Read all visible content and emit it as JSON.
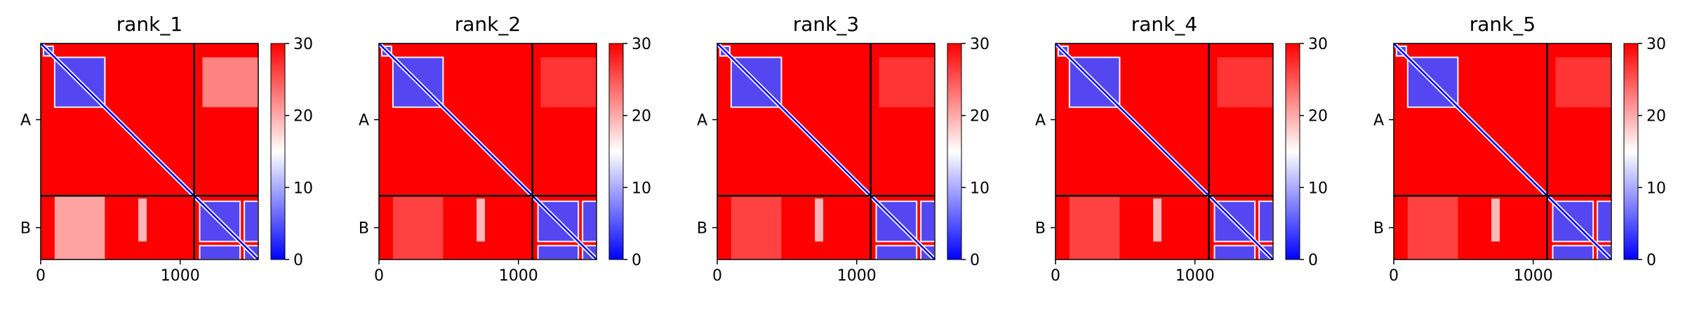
{
  "chart_data": [
    {
      "type": "heatmap",
      "title": "rank_1",
      "chains": [
        "A",
        "B"
      ],
      "x_ticks": [
        0,
        1000
      ],
      "x_range": [
        0,
        1560
      ],
      "y_range": [
        0,
        1560
      ],
      "chain_boundary": 1100,
      "colorbar": {
        "min": 0,
        "max": 30,
        "ticks": [
          0,
          10,
          20,
          30
        ],
        "colors": [
          "#0000ff",
          "#ffffff",
          "#ff0000"
        ]
      },
      "low_error_blocks": [
        {
          "x": [
            20,
            90
          ],
          "y": [
            20,
            90
          ]
        },
        {
          "x": [
            100,
            460
          ],
          "y": [
            100,
            460
          ]
        },
        {
          "x": [
            1140,
            1430
          ],
          "y": [
            1140,
            1430
          ]
        },
        {
          "x": [
            1460,
            1560
          ],
          "y": [
            1140,
            1430
          ]
        },
        {
          "x": [
            1140,
            1430
          ],
          "y": [
            1460,
            1560
          ]
        },
        {
          "x": [
            1460,
            1560
          ],
          "y": [
            1460,
            1560
          ]
        }
      ],
      "cross_chain_band": "strong"
    },
    {
      "type": "heatmap",
      "title": "rank_2",
      "chains": [
        "A",
        "B"
      ],
      "x_ticks": [
        0,
        1000
      ],
      "x_range": [
        0,
        1560
      ],
      "y_range": [
        0,
        1560
      ],
      "chain_boundary": 1100,
      "colorbar": {
        "min": 0,
        "max": 30,
        "ticks": [
          0,
          10,
          20,
          30
        ],
        "colors": [
          "#0000ff",
          "#ffffff",
          "#ff0000"
        ]
      },
      "low_error_blocks": [
        {
          "x": [
            20,
            90
          ],
          "y": [
            20,
            90
          ]
        },
        {
          "x": [
            100,
            460
          ],
          "y": [
            100,
            460
          ]
        },
        {
          "x": [
            1140,
            1430
          ],
          "y": [
            1140,
            1430
          ]
        },
        {
          "x": [
            1460,
            1560
          ],
          "y": [
            1140,
            1430
          ]
        },
        {
          "x": [
            1140,
            1430
          ],
          "y": [
            1460,
            1560
          ]
        },
        {
          "x": [
            1460,
            1560
          ],
          "y": [
            1460,
            1560
          ]
        }
      ],
      "cross_chain_band": "faint"
    },
    {
      "type": "heatmap",
      "title": "rank_3",
      "chains": [
        "A",
        "B"
      ],
      "x_ticks": [
        0,
        1000
      ],
      "x_range": [
        0,
        1560
      ],
      "y_range": [
        0,
        1560
      ],
      "chain_boundary": 1100,
      "colorbar": {
        "min": 0,
        "max": 30,
        "ticks": [
          0,
          10,
          20,
          30
        ],
        "colors": [
          "#0000ff",
          "#ffffff",
          "#ff0000"
        ]
      },
      "low_error_blocks": [
        {
          "x": [
            20,
            90
          ],
          "y": [
            20,
            90
          ]
        },
        {
          "x": [
            100,
            460
          ],
          "y": [
            100,
            460
          ]
        },
        {
          "x": [
            1140,
            1430
          ],
          "y": [
            1140,
            1430
          ]
        },
        {
          "x": [
            1460,
            1560
          ],
          "y": [
            1140,
            1430
          ]
        },
        {
          "x": [
            1140,
            1430
          ],
          "y": [
            1460,
            1560
          ]
        },
        {
          "x": [
            1460,
            1560
          ],
          "y": [
            1460,
            1560
          ]
        }
      ],
      "cross_chain_band": "faint"
    },
    {
      "type": "heatmap",
      "title": "rank_4",
      "chains": [
        "A",
        "B"
      ],
      "x_ticks": [
        0,
        1000
      ],
      "x_range": [
        0,
        1560
      ],
      "y_range": [
        0,
        1560
      ],
      "chain_boundary": 1100,
      "colorbar": {
        "min": 0,
        "max": 30,
        "ticks": [
          0,
          10,
          20,
          30
        ],
        "colors": [
          "#0000ff",
          "#ffffff",
          "#ff0000"
        ]
      },
      "low_error_blocks": [
        {
          "x": [
            20,
            90
          ],
          "y": [
            20,
            90
          ]
        },
        {
          "x": [
            100,
            460
          ],
          "y": [
            100,
            460
          ]
        },
        {
          "x": [
            1140,
            1430
          ],
          "y": [
            1140,
            1430
          ]
        },
        {
          "x": [
            1460,
            1560
          ],
          "y": [
            1140,
            1430
          ]
        },
        {
          "x": [
            1140,
            1430
          ],
          "y": [
            1460,
            1560
          ]
        },
        {
          "x": [
            1460,
            1560
          ],
          "y": [
            1460,
            1560
          ]
        }
      ],
      "cross_chain_band": "faint"
    },
    {
      "type": "heatmap",
      "title": "rank_5",
      "chains": [
        "A",
        "B"
      ],
      "x_ticks": [
        0,
        1000
      ],
      "x_range": [
        0,
        1560
      ],
      "y_range": [
        0,
        1560
      ],
      "chain_boundary": 1100,
      "colorbar": {
        "min": 0,
        "max": 30,
        "ticks": [
          0,
          10,
          20,
          30
        ],
        "colors": [
          "#0000ff",
          "#ffffff",
          "#ff0000"
        ]
      },
      "low_error_blocks": [
        {
          "x": [
            20,
            90
          ],
          "y": [
            20,
            90
          ]
        },
        {
          "x": [
            100,
            460
          ],
          "y": [
            100,
            460
          ]
        },
        {
          "x": [
            1140,
            1430
          ],
          "y": [
            1140,
            1430
          ]
        },
        {
          "x": [
            1460,
            1560
          ],
          "y": [
            1140,
            1430
          ]
        },
        {
          "x": [
            1140,
            1430
          ],
          "y": [
            1460,
            1560
          ]
        },
        {
          "x": [
            1460,
            1560
          ],
          "y": [
            1460,
            1560
          ]
        }
      ],
      "cross_chain_band": "faint"
    }
  ]
}
